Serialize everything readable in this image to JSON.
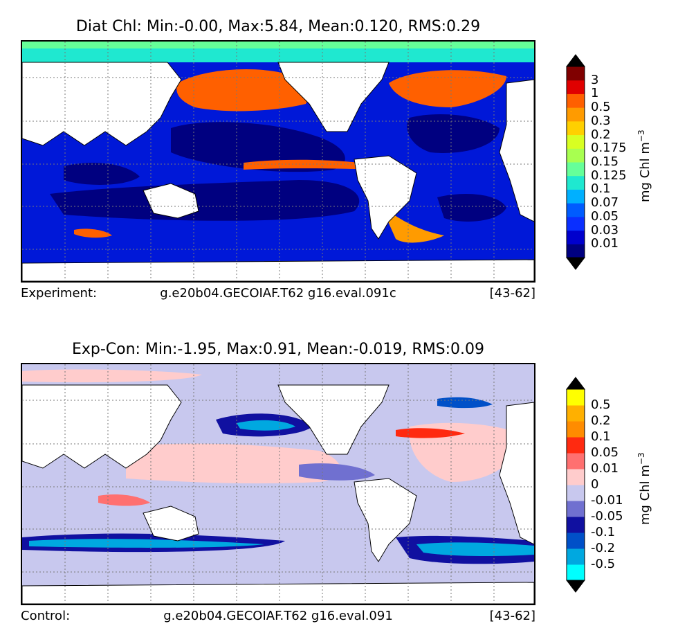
{
  "panels": [
    {
      "id": "diat",
      "title": "Diat Chl: Min:-0.00, Max:5.84, Mean:0.120, RMS:0.29",
      "footer_label": "Experiment:",
      "footer_run": "g.e20b04.GECOIAF.T62 g16.eval.091c",
      "footer_years": "[43-62]",
      "colorbar": {
        "unit_text": "mg Chl m",
        "unit_exp": "−3",
        "levels": [
          "0.01",
          "0.03",
          "0.05",
          "0.07",
          "0.1",
          "0.125",
          "0.15",
          "0.175",
          "0.2",
          "0.3",
          "0.5",
          "1",
          "3"
        ],
        "colors": [
          "#000080",
          "#0000cd",
          "#0a2fff",
          "#005cff",
          "#00b0ff",
          "#1fe8d0",
          "#66ff99",
          "#a8ff50",
          "#d8ff22",
          "#ffd000",
          "#ff9b00",
          "#ff6000",
          "#e00000",
          "#800000"
        ],
        "extend_low": "#000000",
        "extend_high": "#000000"
      },
      "ocean_base": "#0018d8"
    },
    {
      "id": "diff",
      "title": "Exp-Con: Min:-1.95, Max:0.91, Mean:-0.019, RMS:0.09",
      "footer_label": "Control:",
      "footer_run": "g.e20b04.GECOIAF.T62 g16.eval.091",
      "footer_years": "[43-62]",
      "colorbar": {
        "unit_text": "mg Chl m",
        "unit_exp": "−3",
        "levels": [
          "-0.5",
          "-0.2",
          "-0.1",
          "-0.05",
          "-0.01",
          "0",
          "0.01",
          "0.05",
          "0.1",
          "0.2",
          "0.5"
        ],
        "colors": [
          "#00ffff",
          "#00a8e0",
          "#0050c8",
          "#1010a0",
          "#7070d0",
          "#c8c8ee",
          "#ffcccc",
          "#ff7070",
          "#ff2a10",
          "#ff8c00",
          "#ffb000",
          "#ffff00"
        ],
        "extend_low": "#000000",
        "extend_high": "#000000"
      },
      "ocean_base": "#c8c8ee"
    }
  ]
}
